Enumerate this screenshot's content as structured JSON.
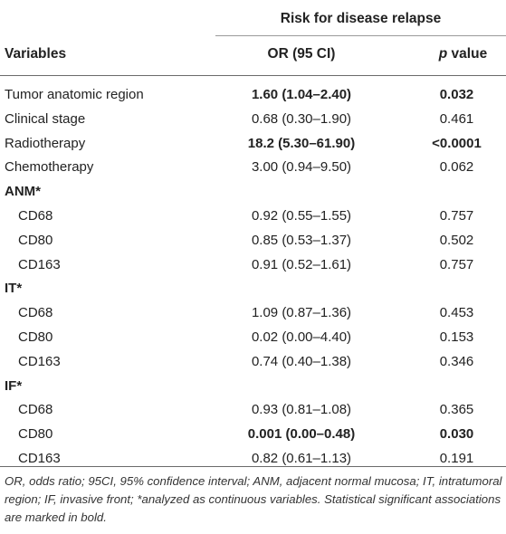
{
  "header": {
    "group_title": "Risk for disease relapse",
    "col_variables": "Variables",
    "col_or": "OR (95 CI)",
    "col_p_italic": "p",
    "col_p_rest": " value"
  },
  "rows": [
    {
      "variable": "Tumor anatomic region",
      "or": "1.60 (1.04–2.40)",
      "p": "0.032",
      "bold": true,
      "kind": "main"
    },
    {
      "variable": "Clinical stage",
      "or": "0.68 (0.30–1.90)",
      "p": "0.461",
      "bold": false,
      "kind": "main"
    },
    {
      "variable": "Radiotherapy",
      "or": "18.2 (5.30–61.90)",
      "p": "<0.0001",
      "bold": true,
      "kind": "main"
    },
    {
      "variable": "Chemotherapy",
      "or": "3.00 (0.94–9.50)",
      "p": "0.062",
      "bold": false,
      "kind": "main"
    },
    {
      "variable": "ANM*",
      "or": "",
      "p": "",
      "bold": false,
      "kind": "group"
    },
    {
      "variable": "CD68",
      "or": "0.92 (0.55–1.55)",
      "p": "0.757",
      "bold": false,
      "kind": "sub"
    },
    {
      "variable": "CD80",
      "or": "0.85 (0.53–1.37)",
      "p": "0.502",
      "bold": false,
      "kind": "sub"
    },
    {
      "variable": "CD163",
      "or": "0.91 (0.52–1.61)",
      "p": "0.757",
      "bold": false,
      "kind": "sub"
    },
    {
      "variable": "IT*",
      "or": "",
      "p": "",
      "bold": false,
      "kind": "group"
    },
    {
      "variable": "CD68",
      "or": "1.09 (0.87–1.36)",
      "p": "0.453",
      "bold": false,
      "kind": "sub"
    },
    {
      "variable": "CD80",
      "or": "0.02 (0.00–4.40)",
      "p": "0.153",
      "bold": false,
      "kind": "sub"
    },
    {
      "variable": "CD163",
      "or": "0.74 (0.40–1.38)",
      "p": "0.346",
      "bold": false,
      "kind": "sub"
    },
    {
      "variable": "IF*",
      "or": "",
      "p": "",
      "bold": false,
      "kind": "group"
    },
    {
      "variable": "CD68",
      "or": "0.93 (0.81–1.08)",
      "p": "0.365",
      "bold": false,
      "kind": "sub"
    },
    {
      "variable": "CD80",
      "or": "0.001 (0.00–0.48)",
      "p": "0.030",
      "bold": true,
      "kind": "sub"
    },
    {
      "variable": "CD163",
      "or": "0.82 (0.61–1.13)",
      "p": "0.191",
      "bold": false,
      "kind": "sub"
    }
  ],
  "footnote": "OR, odds ratio; 95CI, 95% confidence interval; ANM, adjacent normal mucosa; IT, intratumoral region; IF, invasive front; *analyzed as continuous variables. Statistical significant associations are marked in bold."
}
